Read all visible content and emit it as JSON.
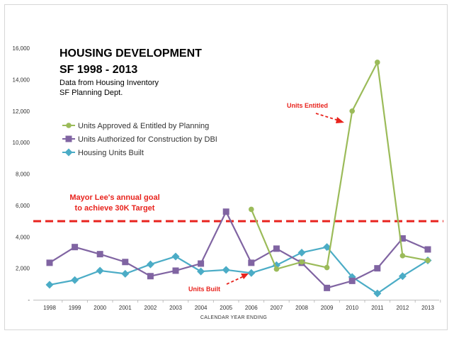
{
  "chart_data": {
    "type": "line",
    "title": [
      "HOUSING DEVELOPMENT",
      "SF 1998 - 2013"
    ],
    "subtitle": [
      "Data from Housing Inventory",
      "SF Planning Dept."
    ],
    "xlabel": "CALENDAR YEAR ENDING",
    "ylabel": "",
    "ylim": [
      0,
      16000
    ],
    "yticks": [
      "-",
      "2,000",
      "4,000",
      "6,000",
      "8,000",
      "10,000",
      "12,000",
      "14,000",
      "16,000"
    ],
    "categories": [
      "1998",
      "1999",
      "2000",
      "2001",
      "2002",
      "2003",
      "2004",
      "2005",
      "2006",
      "2007",
      "2008",
      "2009",
      "2010",
      "2011",
      "2012",
      "2013"
    ],
    "series": [
      {
        "name": "Units Approved & Entitled by Planning",
        "color": "#9bbb59",
        "marker": "circle",
        "values": [
          null,
          null,
          null,
          null,
          null,
          null,
          null,
          null,
          5750,
          1950,
          2400,
          2050,
          12000,
          15100,
          2800,
          2500
        ]
      },
      {
        "name": "Units Authorized for Construction by DBI",
        "color": "#8064a2",
        "marker": "square",
        "values": [
          2350,
          3350,
          2900,
          2400,
          1500,
          1850,
          2300,
          5600,
          2350,
          3250,
          2350,
          750,
          1200,
          2000,
          3900,
          3200
        ]
      },
      {
        "name": "Housing Units Built",
        "color": "#4bacc6",
        "marker": "diamond",
        "values": [
          950,
          1250,
          1850,
          1650,
          2250,
          2750,
          1800,
          1900,
          1700,
          2200,
          3000,
          3350,
          1450,
          400,
          1500,
          2500
        ]
      }
    ],
    "target_line": {
      "value": 5000,
      "label": [
        "Mayor Lee's annual  goal",
        "to achieve 30K Target"
      ],
      "color": "#e8231d"
    },
    "annotations": [
      {
        "text": "Units Entitled",
        "color": "#e8231d"
      },
      {
        "text": "Units Built",
        "color": "#e8231d"
      }
    ]
  }
}
